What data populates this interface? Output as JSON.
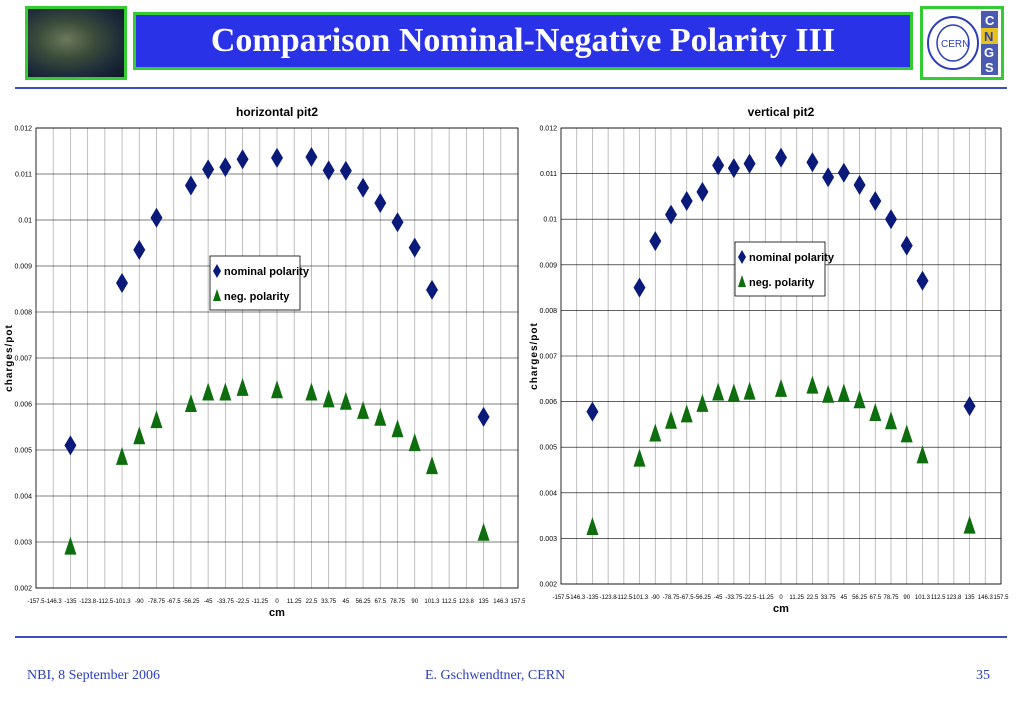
{
  "slide": {
    "title": "Comparison Nominal-Negative Polarity III",
    "footer_left": "NBI, 8 September 2006",
    "footer_center": "E. Gschwendtner, CERN",
    "footer_right": "35",
    "logo": {
      "cern": "CERN",
      "letters": [
        "C",
        "N",
        "G",
        "S"
      ]
    },
    "colors": {
      "title_bg": "#2a32e8",
      "frame": "#33cc33",
      "nominal": "#0a1a7a",
      "negative": "#0e6e0e",
      "footer_text": "#2b3dbb"
    }
  },
  "chart_data": [
    {
      "type": "scatter",
      "title": "horizontal pit2",
      "xlabel": "cm",
      "ylabel": "charges/pot",
      "ylim": [
        0.002,
        0.012
      ],
      "yticks": [
        "0.002",
        "0.003",
        "0.004",
        "0.005",
        "0.006",
        "0.007",
        "0.008",
        "0.009",
        "0.01",
        "0.011",
        "0.012"
      ],
      "xticks": [
        "-157.5",
        "-146.3",
        "-135",
        "-123.8",
        "-112.5",
        "-101.3",
        "-90",
        "-78.75",
        "-67.5",
        "-56.25",
        "-45",
        "-33.75",
        "-22.5",
        "-11.25",
        "0",
        "11.25",
        "22.5",
        "33.75",
        "45",
        "56.25",
        "67.5",
        "78.75",
        "90",
        "101.3",
        "112.5",
        "123.8",
        "135",
        "146.3",
        "157.5"
      ],
      "legend": [
        "nominal polarity",
        "neg. polarity"
      ],
      "legend_position": "center",
      "grid": true,
      "series": [
        {
          "name": "nominal polarity",
          "marker": "diamond",
          "points": [
            [
              -135,
              0.0051
            ],
            [
              -101.3,
              0.00863
            ],
            [
              -90,
              0.00935
            ],
            [
              -78.75,
              0.01005
            ],
            [
              -56.25,
              0.01075
            ],
            [
              -45,
              0.0111
            ],
            [
              -33.75,
              0.01115
            ],
            [
              -22.5,
              0.01132
            ],
            [
              0,
              0.01135
            ],
            [
              22.5,
              0.01137
            ],
            [
              33.75,
              0.01108
            ],
            [
              45,
              0.01107
            ],
            [
              56.25,
              0.0107
            ],
            [
              67.5,
              0.01037
            ],
            [
              78.75,
              0.00995
            ],
            [
              90,
              0.0094
            ],
            [
              101.3,
              0.00848
            ],
            [
              135,
              0.00572
            ]
          ]
        },
        {
          "name": "neg. polarity",
          "marker": "triangle",
          "points": [
            [
              -135,
              0.0029
            ],
            [
              -101.3,
              0.00485
            ],
            [
              -90,
              0.0053
            ],
            [
              -78.75,
              0.00565
            ],
            [
              -56.25,
              0.006
            ],
            [
              -45,
              0.00625
            ],
            [
              -33.75,
              0.00625
            ],
            [
              -22.5,
              0.00635
            ],
            [
              0,
              0.0063
            ],
            [
              22.5,
              0.00625
            ],
            [
              33.75,
              0.0061
            ],
            [
              45,
              0.00605
            ],
            [
              56.25,
              0.00585
            ],
            [
              67.5,
              0.0057
            ],
            [
              78.75,
              0.00545
            ],
            [
              90,
              0.00515
            ],
            [
              101.3,
              0.00465
            ],
            [
              135,
              0.0032
            ]
          ]
        }
      ]
    },
    {
      "type": "scatter",
      "title": "vertical pit2",
      "xlabel": "cm",
      "ylabel": "charges/pot",
      "ylim": [
        0.002,
        0.012
      ],
      "yticks": [
        "0.002",
        "0.003",
        "0.004",
        "0.005",
        "0.006",
        "0.007",
        "0.008",
        "0.009",
        "0.01",
        "0.011",
        "0.012"
      ],
      "xticks": [
        "-157.5",
        "-146.3",
        "-135",
        "-123.8",
        "-112.5",
        "-101.3",
        "-90",
        "-78.75",
        "-67.5",
        "-56.25",
        "-45",
        "-33.75",
        "-22.5",
        "-11.25",
        "0",
        "11.25",
        "22.5",
        "33.75",
        "45",
        "56.25",
        "67.5",
        "78.75",
        "90",
        "101.3",
        "112.5",
        "123.8",
        "135",
        "146.3",
        "157.5"
      ],
      "legend": [
        "nominal polarity",
        "neg. polarity"
      ],
      "legend_position": "center",
      "grid": true,
      "series": [
        {
          "name": "nominal polarity",
          "marker": "diamond",
          "points": [
            [
              -135,
              0.00578
            ],
            [
              -101.3,
              0.0085
            ],
            [
              -90,
              0.00952
            ],
            [
              -78.75,
              0.0101
            ],
            [
              -67.5,
              0.0104
            ],
            [
              -56.25,
              0.0106
            ],
            [
              -45,
              0.01118
            ],
            [
              -33.75,
              0.01112
            ],
            [
              -22.5,
              0.01122
            ],
            [
              0,
              0.01135
            ],
            [
              22.5,
              0.01125
            ],
            [
              33.75,
              0.01092
            ],
            [
              45,
              0.01102
            ],
            [
              56.25,
              0.01075
            ],
            [
              67.5,
              0.0104
            ],
            [
              78.75,
              0.01
            ],
            [
              90,
              0.00942
            ],
            [
              101.3,
              0.00865
            ],
            [
              135,
              0.0059
            ]
          ]
        },
        {
          "name": "neg. polarity",
          "marker": "triangle",
          "points": [
            [
              -135,
              0.00325
            ],
            [
              -101.3,
              0.00475
            ],
            [
              -90,
              0.0053
            ],
            [
              -78.75,
              0.00558
            ],
            [
              -67.5,
              0.00572
            ],
            [
              -56.25,
              0.00595
            ],
            [
              -45,
              0.0062
            ],
            [
              -33.75,
              0.00618
            ],
            [
              -22.5,
              0.00622
            ],
            [
              0,
              0.00628
            ],
            [
              22.5,
              0.00635
            ],
            [
              33.75,
              0.00615
            ],
            [
              45,
              0.00618
            ],
            [
              56.25,
              0.00603
            ],
            [
              67.5,
              0.00575
            ],
            [
              78.75,
              0.00557
            ],
            [
              90,
              0.00528
            ],
            [
              101.3,
              0.00482
            ],
            [
              135,
              0.00328
            ]
          ]
        }
      ]
    }
  ]
}
